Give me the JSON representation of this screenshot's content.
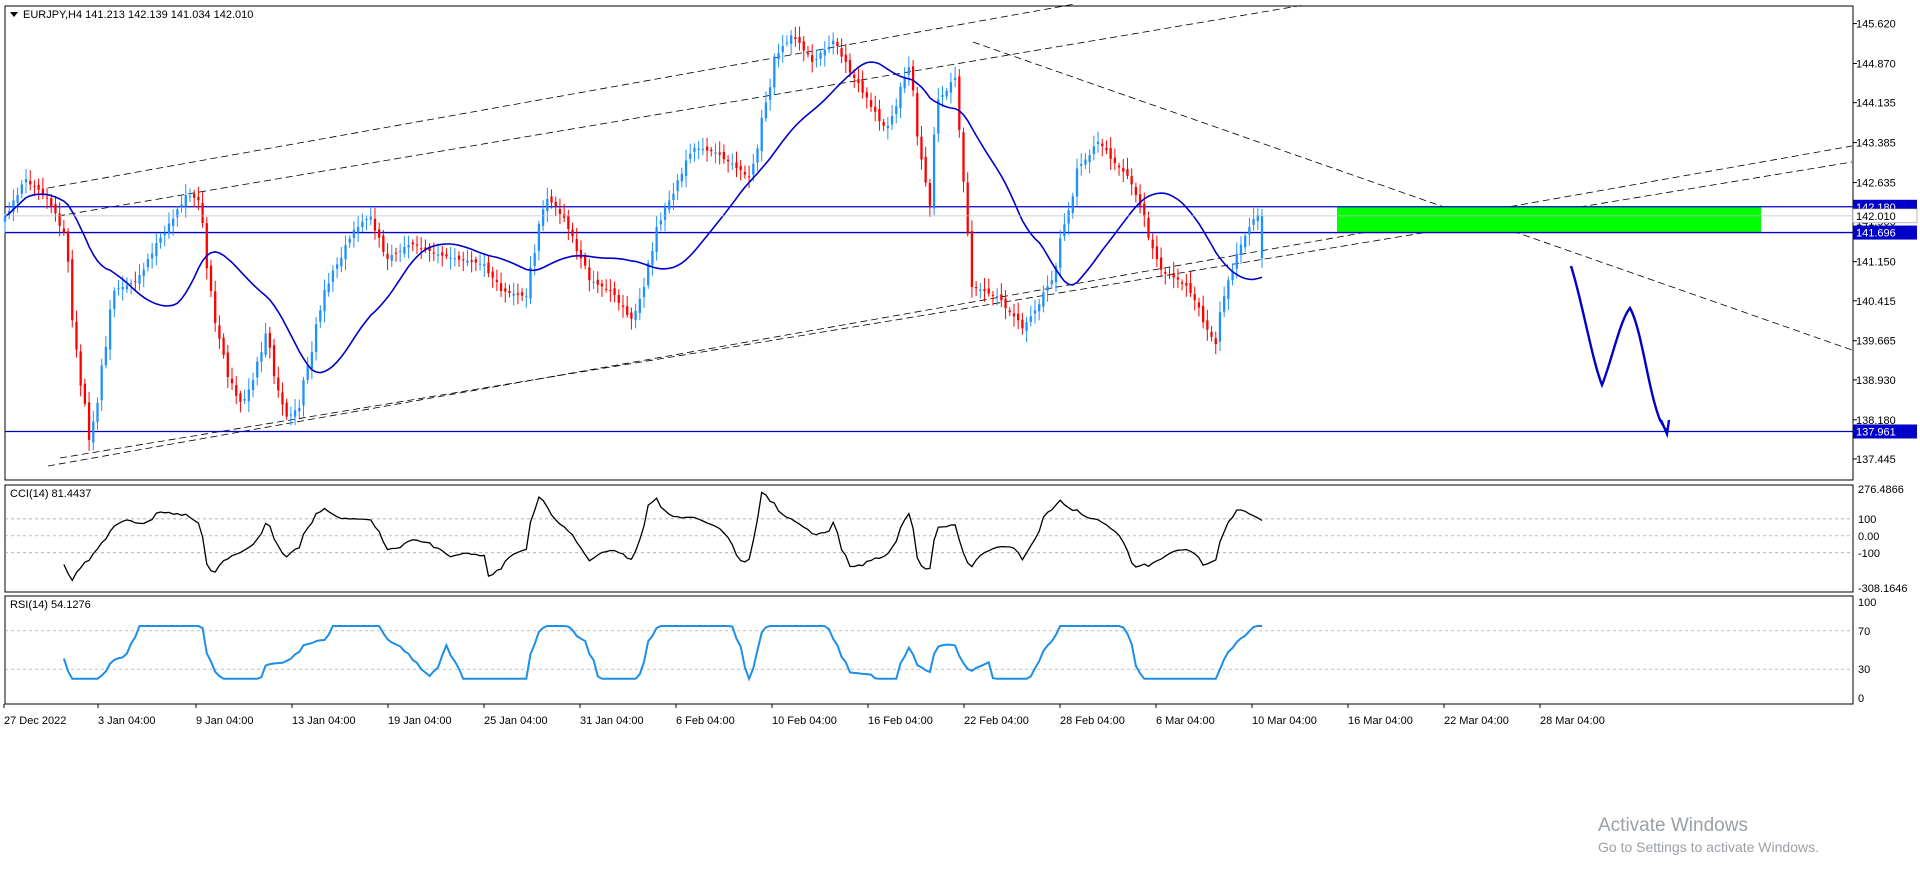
{
  "chart_data": {
    "type": "candlestick",
    "symbol_header": "EURJPY,H4",
    "ohlc": {
      "open": "141.213",
      "high": "142.139",
      "low": "141.034",
      "close": "142.010"
    },
    "price_ticks": [
      "145.620",
      "144.870",
      "144.135",
      "143.385",
      "142.635",
      "141.900",
      "141.150",
      "140.415",
      "139.665",
      "138.930",
      "138.180",
      "137.445"
    ],
    "x_ticks": [
      "27 Dec 2022",
      "3 Jan 04:00",
      "9 Jan 04:00",
      "13 Jan 04:00",
      "19 Jan 04:00",
      "25 Jan 04:00",
      "31 Jan 04:00",
      "6 Feb 04:00",
      "10 Feb 04:00",
      "16 Feb 04:00",
      "22 Feb 04:00",
      "28 Feb 04:00",
      "6 Mar 04:00",
      "10 Mar 04:00",
      "16 Mar 04:00",
      "22 Mar 04:00",
      "28 Mar 04:00"
    ],
    "ylim": [
      137.05,
      145.95
    ],
    "horizontal_lines": [
      {
        "price": 142.18,
        "label": "142.180"
      },
      {
        "price": 141.696,
        "label": "141.696"
      },
      {
        "price": 137.961,
        "label": "137.961"
      }
    ],
    "current_price_label": "142.010",
    "zone": {
      "from_price": 141.696,
      "to_price": 142.18,
      "color": "#00ff00"
    },
    "colors": {
      "bull": "#1e90ff",
      "bear": "#ff0000",
      "ma": "#0000c8",
      "level": "#0000c8",
      "rsi": "#1e8fe8",
      "cci": "#000000"
    },
    "cci": {
      "label": "CCI(14) 81.4437",
      "ticks": [
        "276.4866",
        "100",
        "0.00",
        "-100",
        "-308.1646"
      ],
      "ylim": [
        -308.1646,
        276.4866
      ],
      "levels": [
        100,
        0,
        -100
      ]
    },
    "rsi": {
      "label": "RSI(14) 54.1276",
      "ticks": [
        "100",
        "70",
        "30",
        "0"
      ],
      "ylim": [
        0,
        100
      ],
      "levels": [
        70,
        30
      ]
    }
  },
  "watermark": {
    "title": "Activate Windows",
    "subtitle": "Go to Settings to activate Windows."
  }
}
